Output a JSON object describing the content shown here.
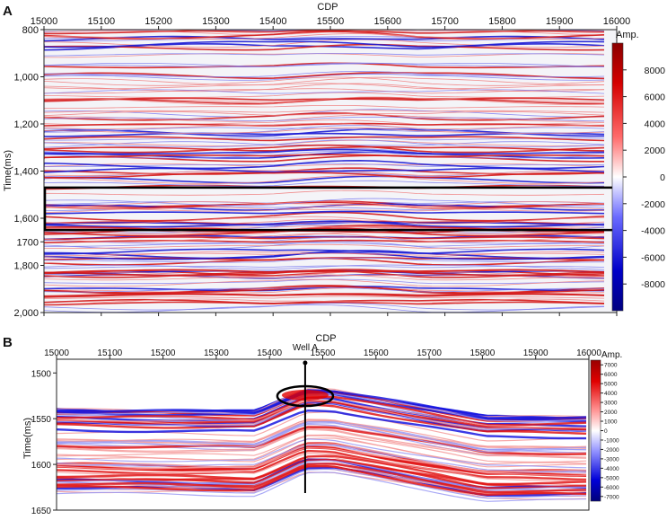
{
  "panel_a": {
    "letter": "A",
    "x_title": "CDP",
    "y_title": "Time(ms)",
    "x_ticks": [
      "15000",
      "15100",
      "15200",
      "15300",
      "15400",
      "15500",
      "15600",
      "15700",
      "15800",
      "15900",
      "16000"
    ],
    "x_range": [
      15000,
      16000
    ],
    "y_ticks": [
      {
        "v": 800,
        "t": "800"
      },
      {
        "v": 1000,
        "t": "1,000"
      },
      {
        "v": 1200,
        "t": "1,200"
      },
      {
        "v": 1400,
        "t": "1,400"
      },
      {
        "v": 1600,
        "t": "1,600"
      },
      {
        "v": 1700,
        "t": "1700"
      },
      {
        "v": 1800,
        "t": "1,800"
      },
      {
        "v": 2000,
        "t": "2,000"
      }
    ],
    "y_range": [
      800,
      2000
    ],
    "highlight_time_range": [
      1470,
      1650
    ],
    "colorbar": {
      "title": "Amp.",
      "range": [
        -10000,
        10000
      ],
      "ticks": [
        {
          "v": 8000,
          "t": "8000"
        },
        {
          "v": 6000,
          "t": "6000"
        },
        {
          "v": 4000,
          "t": "4000"
        },
        {
          "v": 2000,
          "t": "2000"
        },
        {
          "v": 0,
          "t": "0"
        },
        {
          "v": -2000,
          "t": "-2000"
        },
        {
          "v": -4000,
          "t": "-4000"
        },
        {
          "v": -6000,
          "t": "-6000"
        },
        {
          "v": -8000,
          "t": "-8000"
        }
      ]
    }
  },
  "panel_b": {
    "letter": "B",
    "x_title": "CDP",
    "y_title": "Time(ms)",
    "x_ticks": [
      "15000",
      "15100",
      "15200",
      "15300",
      "15400",
      "15500",
      "15600",
      "15700",
      "15800",
      "15900",
      "16000"
    ],
    "x_range": [
      15000,
      16000
    ],
    "y_ticks": [
      {
        "v": 1500,
        "t": "1500"
      },
      {
        "v": 1550,
        "t": "1550"
      },
      {
        "v": 1600,
        "t": "1600"
      },
      {
        "v": 1650,
        "t": "1650"
      }
    ],
    "y_range": [
      1485,
      1650
    ],
    "well_label": "Well A",
    "well_cdp": 15467,
    "colorbar": {
      "title": "Amp.",
      "range": [
        -7500,
        7500
      ],
      "ticks": [
        {
          "v": 7000,
          "t": "7000"
        },
        {
          "v": 6000,
          "t": "6000"
        },
        {
          "v": 5000,
          "t": "5000"
        },
        {
          "v": 4000,
          "t": "4000"
        },
        {
          "v": 3000,
          "t": "3000"
        },
        {
          "v": 2000,
          "t": "2000"
        },
        {
          "v": 1000,
          "t": "1000"
        },
        {
          "v": 0,
          "t": "0"
        },
        {
          "v": -1000,
          "t": "-1000"
        },
        {
          "v": -2000,
          "t": "-2000"
        },
        {
          "v": -3000,
          "t": "-3000"
        },
        {
          "v": -4000,
          "t": "-4000"
        },
        {
          "v": -5000,
          "t": "-5000"
        },
        {
          "v": -6000,
          "t": "-6000"
        },
        {
          "v": -7000,
          "t": "-7000"
        }
      ]
    }
  }
}
